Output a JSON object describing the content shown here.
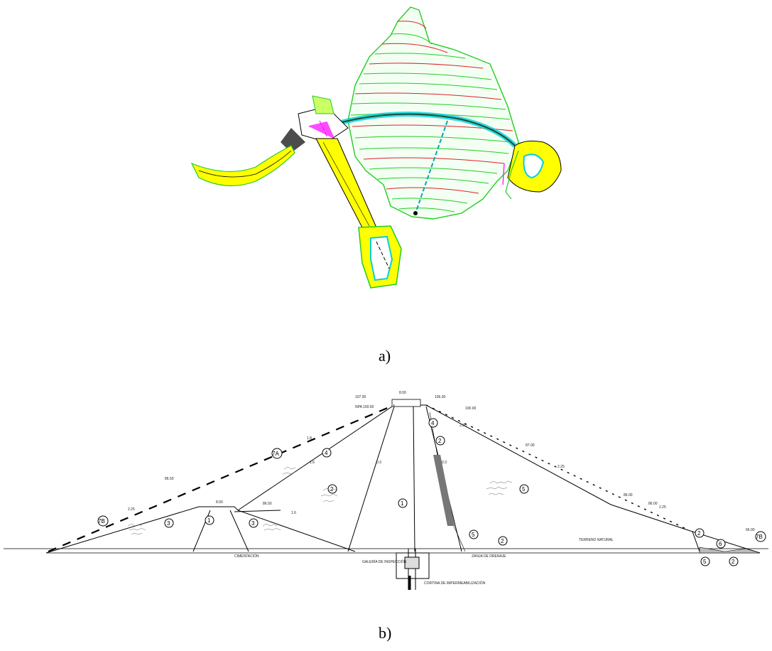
{
  "captions": {
    "a": "a)",
    "b": "b)"
  },
  "colors": {
    "contour_green": "#22cc22",
    "contour_red": "#e0202a",
    "accent_yellow": "#ffff00",
    "magenta": "#ff00ff",
    "cyan": "#00d0e0"
  },
  "section": {
    "zones": [
      "1",
      "2",
      "3",
      "4",
      "5",
      "6",
      "7A",
      "7B"
    ],
    "labels": {
      "crest_left": "107.00",
      "crest_width": "8.00",
      "crest_right": "106.00",
      "upstream_level": "NPA 100.00",
      "downstream_level": "100.00",
      "berm_left": "86.50",
      "berm_mid": "86.50",
      "berm_width": "8.00",
      "slope_1": "2.25",
      "slope_2": "2.25",
      "slope_3": "2.25",
      "slope_4": "2.25",
      "slope_5": "1.8",
      "slope_6": "1.6",
      "slope_7": "0.3",
      "slope_8": "0.3",
      "slope_9": "1.6",
      "ds_berm1": "87.00",
      "ds_berm2": "86.00",
      "ds_berm3": "86.00",
      "ds_toe": "66.00",
      "natural_ground": "TERRENO NATURAL",
      "cimentacion": "CIMENTACIÓN",
      "galeria": "GALERÍA DE INSPECCIÓN",
      "cortina": "CORTINA DE IMPERMEABILIZACIÓN",
      "zanja": "ZANJA DE DRENAJE"
    }
  }
}
